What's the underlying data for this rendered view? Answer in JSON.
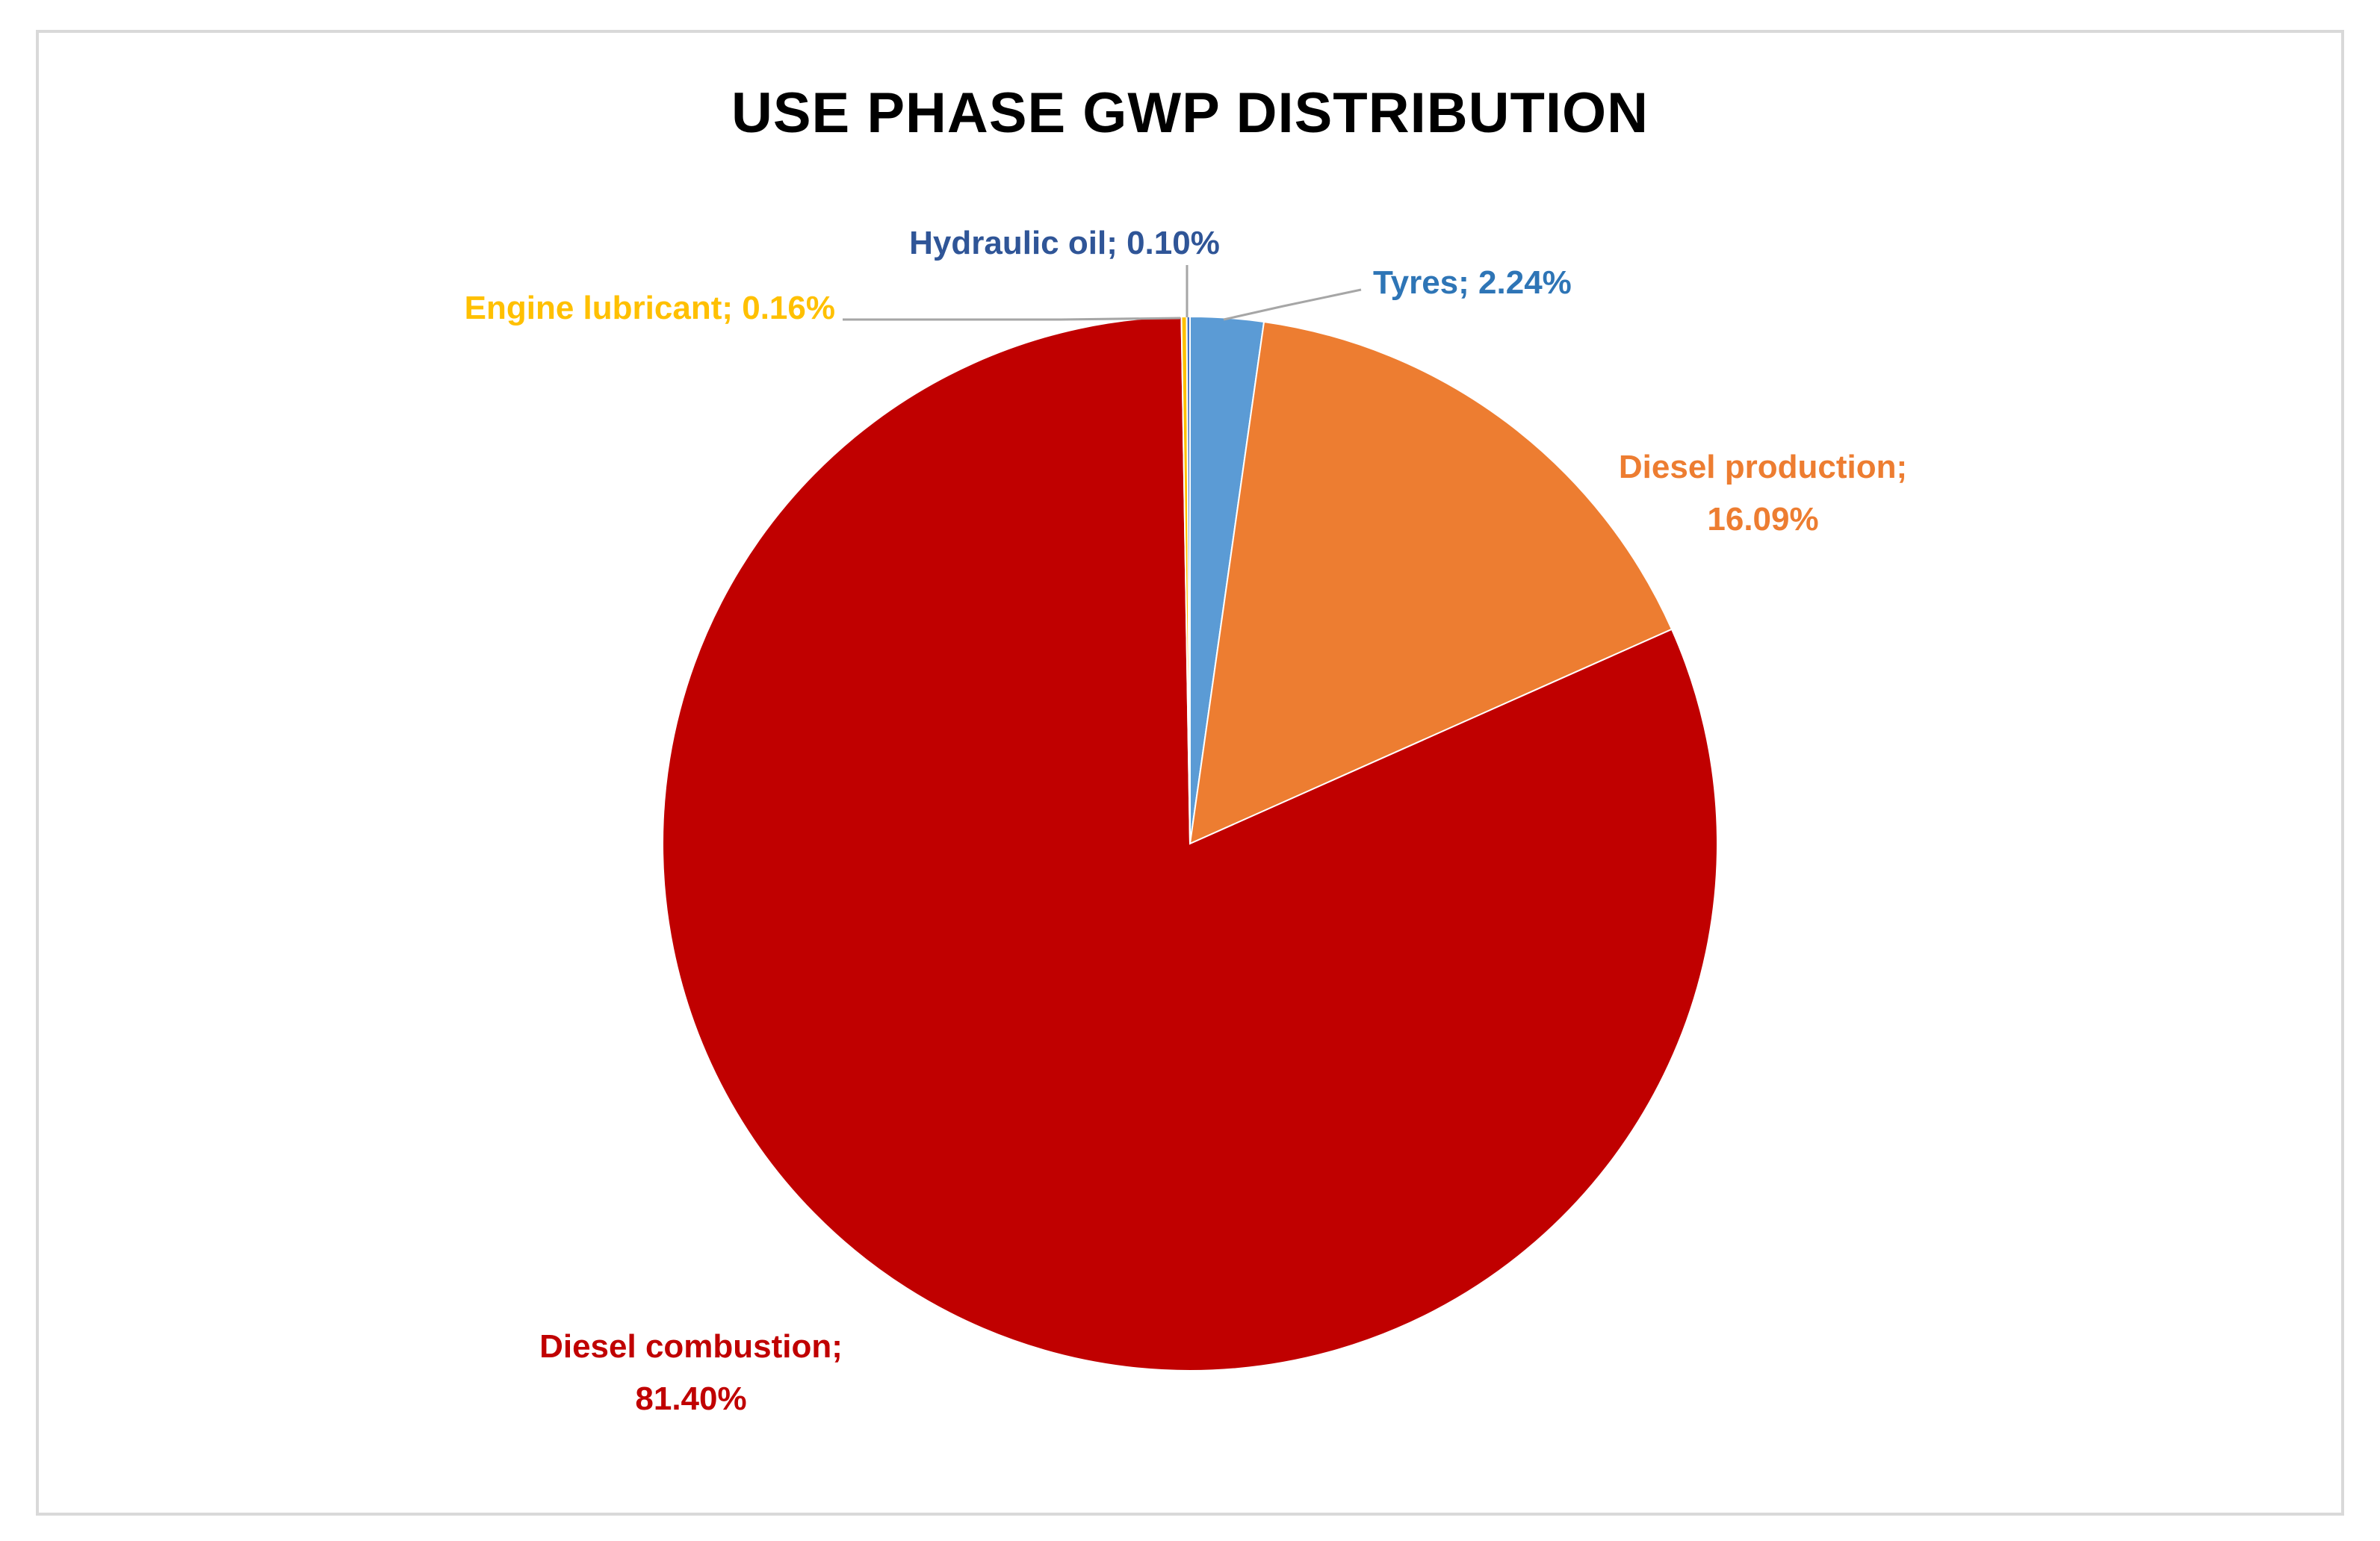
{
  "chart_data": {
    "type": "pie",
    "title": "USE PHASE GWP DISTRIBUTION",
    "slices": [
      {
        "label": "Tyres",
        "value": 2.24,
        "display": "2.24%",
        "color": "#5b9bd5",
        "label_color": "#2e75b6"
      },
      {
        "label": "Diesel production",
        "value": 16.09,
        "display": "16.09%",
        "color": "#ed7d31",
        "label_color": "#ed7d31"
      },
      {
        "label": "Diesel combustion",
        "value": 81.4,
        "display": "81.40%",
        "color": "#c00000",
        "label_color": "#c00000"
      },
      {
        "label": "Engine lubricant",
        "value": 0.16,
        "display": "0.16%",
        "color": "#ffc000",
        "label_color": "#ffc000"
      },
      {
        "label": "Hydraulic oil",
        "value": 0.1,
        "display": "0.10%",
        "color": "#4472c4",
        "label_color": "#2f5597"
      }
    ],
    "data_label_separator": "; ",
    "leader_line_color": "#a6a6a6",
    "legend": "none"
  }
}
